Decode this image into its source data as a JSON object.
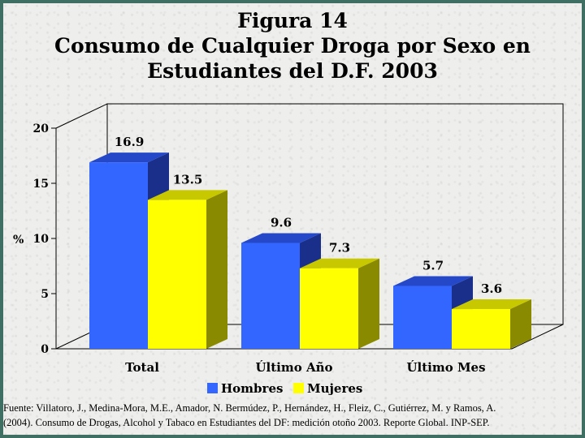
{
  "title": {
    "line1": "Figura 14",
    "line2": "Consumo de Cualquier Droga por Sexo en",
    "line3": "Estudiantes del D.F. 2003"
  },
  "chart_data": {
    "type": "bar",
    "categories": [
      "Total",
      "Último Año",
      "Último Mes"
    ],
    "series": [
      {
        "name": "Hombres",
        "values": [
          16.9,
          9.6,
          5.7
        ],
        "color": "#3366ff",
        "side_color": "#1a2f8a",
        "top_color": "#2448c8"
      },
      {
        "name": "Mujeres",
        "values": [
          13.5,
          7.3,
          3.6
        ],
        "color": "#ffff00",
        "side_color": "#8a8a00",
        "top_color": "#c8c800"
      }
    ],
    "ylabel": "%",
    "ylim": [
      0,
      20
    ],
    "yticks": [
      0,
      5,
      10,
      15,
      20
    ],
    "value_labels": [
      [
        "16.9",
        "9.6",
        "5.7"
      ],
      [
        "13.5",
        "7.3",
        "3.6"
      ]
    ],
    "three_d": true,
    "legend_position": "bottom",
    "grid": false
  },
  "source": {
    "line1": "Fuente: Villatoro, J., Medina-Mora, M.E., Amador, N. Bermúdez, P., Hernández, H., Fleiz, C., Gutiérrez, M. y Ramos, A.",
    "line2": "(2004). Consumo de Drogas, Alcohol y Tabaco en Estudiantes del DF: medición otoño 2003. Reporte Global. INP-SEP."
  }
}
